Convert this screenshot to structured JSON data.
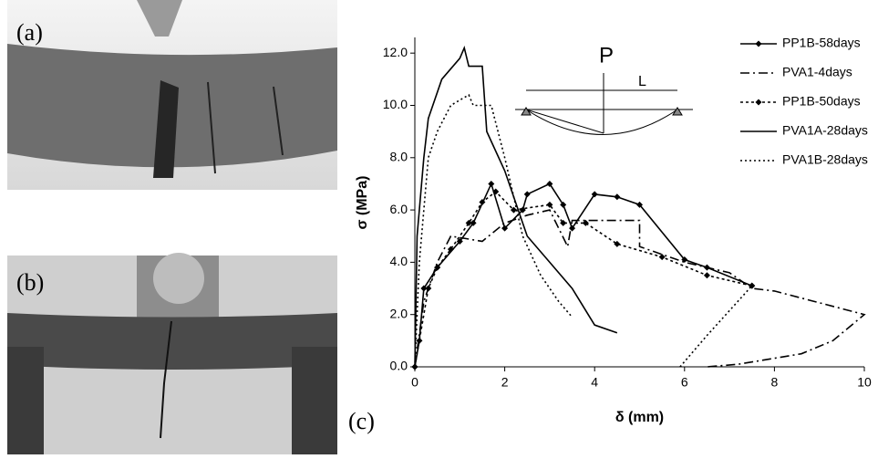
{
  "panel_labels": [
    "(a)",
    "(b)",
    "(c)"
  ],
  "chart_data": {
    "type": "line",
    "xlabel": "δ (mm)",
    "ylabel": "σ (MPa)",
    "annotations": [
      "P",
      "L"
    ],
    "xlim": [
      0,
      10
    ],
    "xticks": [
      0,
      2,
      4,
      6,
      8,
      10
    ],
    "ylim": [
      0,
      12.6
    ],
    "yticks": [
      {
        "value": 0,
        "label": "0.0"
      },
      {
        "value": 2,
        "label": "2.0"
      },
      {
        "value": 4,
        "label": "4.0"
      },
      {
        "value": 6,
        "label": "6.0"
      },
      {
        "value": 8,
        "label": "8.0"
      },
      {
        "value": 10,
        "label": "10.0"
      },
      {
        "value": 12,
        "label": "12.0"
      }
    ],
    "legend": "upper right",
    "series": [
      {
        "name": "PP1B-58days",
        "color": "#000000",
        "dash": "none",
        "marker": true,
        "x": [
          0,
          0.1,
          0.2,
          0.5,
          1,
          1.3,
          1.7,
          2,
          2.4,
          2.5,
          3,
          3.3,
          3.5,
          4,
          4.5,
          5,
          6,
          6.5,
          7.5
        ],
        "values": [
          0,
          1,
          3,
          3.8,
          4.8,
          5.5,
          7,
          5.3,
          6,
          6.6,
          7,
          6.2,
          5.3,
          6.6,
          6.5,
          6.2,
          4.1,
          3.8,
          3.1
        ]
      },
      {
        "name": "PVA1-4days",
        "color": "#000000",
        "dash": "10 4 2 4",
        "marker": false,
        "x": [
          0,
          0.2,
          0.5,
          0.8,
          1.5,
          2,
          2.5,
          3,
          3.4,
          3.5,
          5,
          5,
          6,
          7,
          7.5,
          8,
          10,
          9.3,
          8.6,
          7.2,
          6.5
        ],
        "values": [
          0,
          2.5,
          4,
          5,
          4.8,
          5.5,
          5.8,
          6,
          4.6,
          5.6,
          5.6,
          4.6,
          4,
          3.6,
          3,
          2.9,
          2,
          1,
          0.5,
          0.1,
          0
        ]
      },
      {
        "name": "PP1B-50days",
        "color": "#000000",
        "dash": "3 3",
        "marker": true,
        "x": [
          0,
          0.3,
          0.5,
          0.8,
          1.2,
          1.5,
          1.8,
          2.2,
          3,
          3.3,
          3.8,
          4.5,
          5.5,
          6.5,
          7.5
        ],
        "values": [
          0,
          3,
          3.8,
          4.5,
          5.5,
          6.3,
          6.7,
          6,
          6.2,
          5.5,
          5.5,
          4.7,
          4.2,
          3.5,
          3.1
        ]
      },
      {
        "name": "PVA1A-28days",
        "color": "#000000",
        "dash": "none",
        "marker": false,
        "x": [
          0,
          0.05,
          0.2,
          0.3,
          0.6,
          1,
          1.1,
          1.2,
          1.5,
          1.6,
          2,
          2.5,
          3,
          3.5,
          4,
          4.5
        ],
        "values": [
          0,
          5,
          8,
          9.5,
          11,
          11.8,
          12.2,
          11.5,
          11.5,
          9,
          7.5,
          5,
          4,
          3,
          1.6,
          1.3
        ]
      },
      {
        "name": "PVA1B-28days",
        "color": "#000000",
        "dash": "2 3",
        "marker": false,
        "x": [
          0,
          0.1,
          0.3,
          0.5,
          0.8,
          1.2,
          1.3,
          1.7,
          2,
          2.4,
          2.8,
          3.2,
          3.5,
          null,
          5.9,
          6.5,
          7.5
        ],
        "values": [
          0,
          4,
          8,
          9,
          10,
          10.4,
          10,
          10,
          8,
          5,
          3.5,
          2.5,
          1.9,
          null,
          0,
          1.2,
          3.1
        ]
      }
    ]
  }
}
